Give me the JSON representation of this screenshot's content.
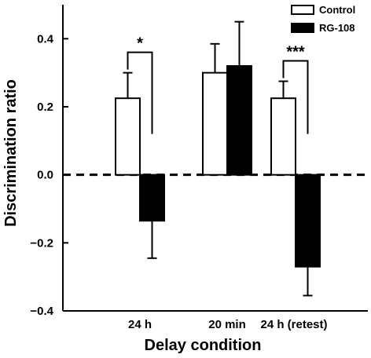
{
  "chart_data": {
    "type": "bar",
    "categories": [
      "24 h",
      "20 min",
      "24 h (retest)"
    ],
    "series": [
      {
        "name": "Control",
        "values": [
          0.225,
          0.3,
          0.225
        ],
        "errors": [
          0.075,
          0.085,
          0.05
        ]
      },
      {
        "name": "RG-108",
        "values": [
          -0.135,
          0.32,
          -0.27
        ],
        "errors": [
          0.11,
          0.13,
          0.085
        ]
      }
    ],
    "title": "",
    "xlabel": "Delay condition",
    "ylabel": "Discrimination ratio",
    "ylim": [
      -0.4,
      0.5
    ],
    "yticks": [
      -0.4,
      -0.2,
      0.0,
      0.2,
      0.4
    ],
    "ytick_labels": [
      "−0.4",
      "−0.2",
      "0.0",
      "0.2",
      "0.4"
    ],
    "reference_line": {
      "y": 0.0,
      "style": "dashed"
    },
    "significance": [
      {
        "category": "24 h",
        "label": "*"
      },
      {
        "category": "24 h (retest)",
        "label": "***"
      }
    ],
    "legend": {
      "position": "top-right"
    },
    "colors": {
      "Control": "#ffffff",
      "RG-108": "#000000",
      "axis": "#000000"
    },
    "grid": false
  }
}
